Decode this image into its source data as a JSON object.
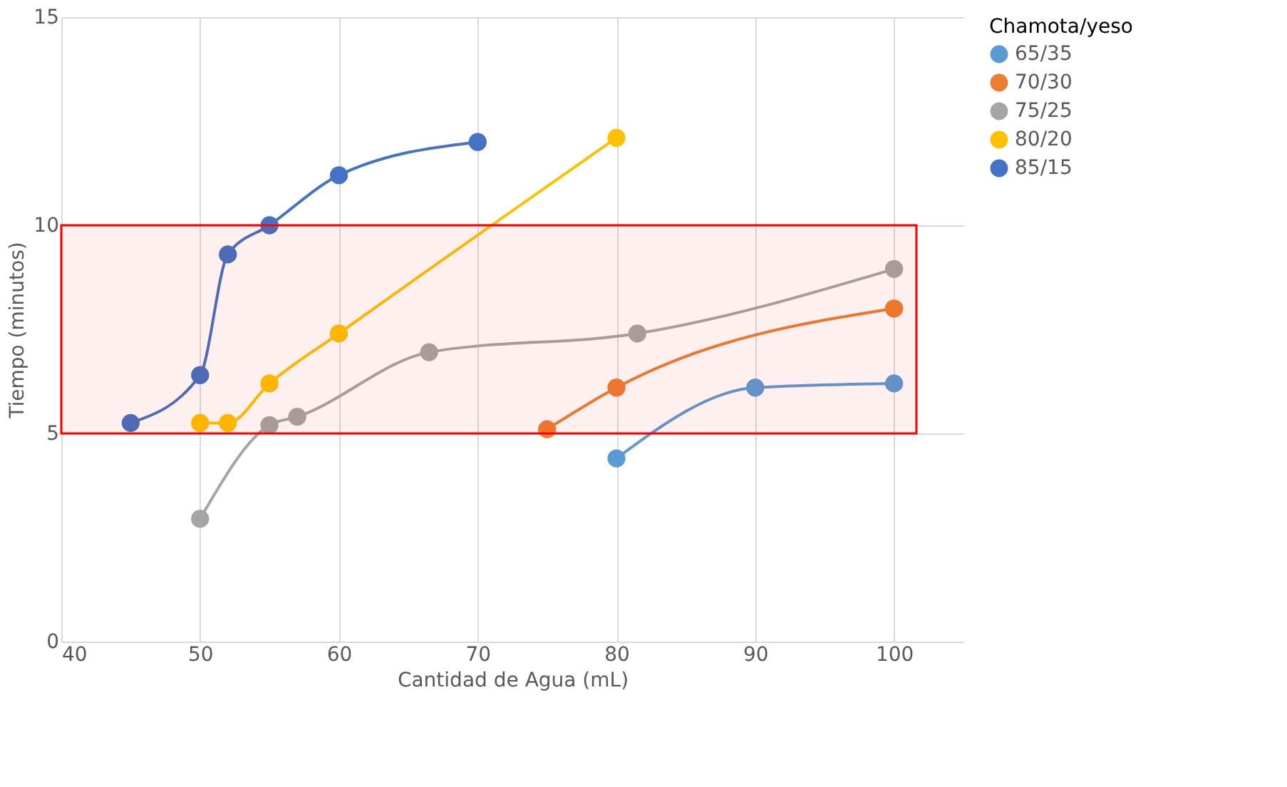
{
  "chart_data": {
    "type": "line",
    "xlabel": "Cantidad de Agua (mL)",
    "ylabel": "Tiempo (minutos)",
    "legend_title": "Chamota/yeso",
    "legend": "right",
    "grid": true,
    "marker": "circle",
    "line_style": "solid",
    "xlim": [
      40,
      105
    ],
    "xticks": [
      40,
      50,
      60,
      70,
      80,
      90,
      100
    ],
    "ylim": [
      0,
      15
    ],
    "yticks": [
      0,
      5,
      10,
      15
    ],
    "series": [
      {
        "name": "65/35",
        "color": "#5b9bd5",
        "x": [
          80,
          90,
          100
        ],
        "values": [
          4.4,
          6.1,
          6.2
        ]
      },
      {
        "name": "70/30",
        "color": "#ed7d31",
        "x": [
          75,
          80,
          100
        ],
        "values": [
          5.1,
          6.1,
          8.0
        ]
      },
      {
        "name": "75/25",
        "color": "#a5a5a5",
        "x": [
          50,
          55,
          57,
          66.5,
          81.5,
          100
        ],
        "values": [
          2.95,
          5.2,
          5.4,
          6.95,
          7.4,
          8.95
        ]
      },
      {
        "name": "80/20",
        "color": "#ffc000",
        "x": [
          50,
          52,
          55,
          60,
          80
        ],
        "values": [
          5.25,
          5.25,
          6.2,
          7.4,
          12.1
        ]
      },
      {
        "name": "85/15",
        "color": "#4472c4",
        "x": [
          45,
          50,
          52,
          55,
          60,
          70
        ],
        "values": [
          5.25,
          6.4,
          9.3,
          10.0,
          11.2,
          12.0
        ]
      }
    ],
    "bands": [
      {
        "axis": "y",
        "from": 5,
        "to": 10,
        "color": "#ff0000"
      }
    ]
  }
}
